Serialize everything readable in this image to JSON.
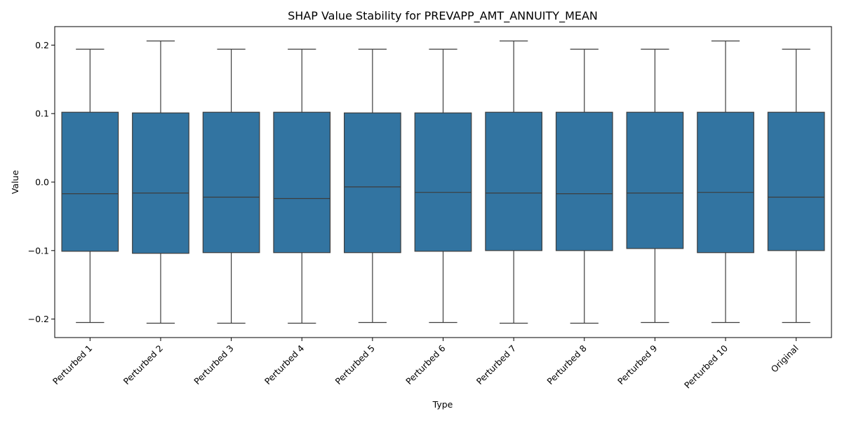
{
  "chart_data": {
    "type": "box",
    "title": "SHAP Value Stability for PREVAPP_AMT_ANNUITY_MEAN",
    "xlabel": "Type",
    "ylabel": "Value",
    "ylim": [
      -0.227,
      0.227
    ],
    "yticks": [
      -0.2,
      -0.1,
      0.0,
      0.1,
      0.2
    ],
    "ytick_labels": [
      "−0.2",
      "−0.1",
      "0.0",
      "0.1",
      "0.2"
    ],
    "categories": [
      "Perturbed 1",
      "Perturbed 2",
      "Perturbed 3",
      "Perturbed 4",
      "Perturbed 5",
      "Perturbed 6",
      "Perturbed 7",
      "Perturbed 8",
      "Perturbed 9",
      "Perturbed 10",
      "Original"
    ],
    "grid": false,
    "colors": {
      "box_fill": "#3274a1",
      "box_edge": "#3d3d3d"
    },
    "boxes": [
      {
        "whislo": -0.205,
        "q1": -0.101,
        "med": -0.017,
        "q3": 0.102,
        "whishi": 0.194
      },
      {
        "whislo": -0.206,
        "q1": -0.104,
        "med": -0.016,
        "q3": 0.101,
        "whishi": 0.206
      },
      {
        "whislo": -0.206,
        "q1": -0.103,
        "med": -0.022,
        "q3": 0.102,
        "whishi": 0.194
      },
      {
        "whislo": -0.206,
        "q1": -0.103,
        "med": -0.024,
        "q3": 0.102,
        "whishi": 0.194
      },
      {
        "whislo": -0.205,
        "q1": -0.103,
        "med": -0.007,
        "q3": 0.101,
        "whishi": 0.194
      },
      {
        "whislo": -0.205,
        "q1": -0.101,
        "med": -0.015,
        "q3": 0.101,
        "whishi": 0.194
      },
      {
        "whislo": -0.206,
        "q1": -0.1,
        "med": -0.016,
        "q3": 0.102,
        "whishi": 0.206
      },
      {
        "whislo": -0.206,
        "q1": -0.1,
        "med": -0.017,
        "q3": 0.102,
        "whishi": 0.194
      },
      {
        "whislo": -0.205,
        "q1": -0.097,
        "med": -0.016,
        "q3": 0.102,
        "whishi": 0.194
      },
      {
        "whislo": -0.205,
        "q1": -0.103,
        "med": -0.015,
        "q3": 0.102,
        "whishi": 0.206
      },
      {
        "whislo": -0.205,
        "q1": -0.1,
        "med": -0.022,
        "q3": 0.102,
        "whishi": 0.194
      }
    ]
  }
}
